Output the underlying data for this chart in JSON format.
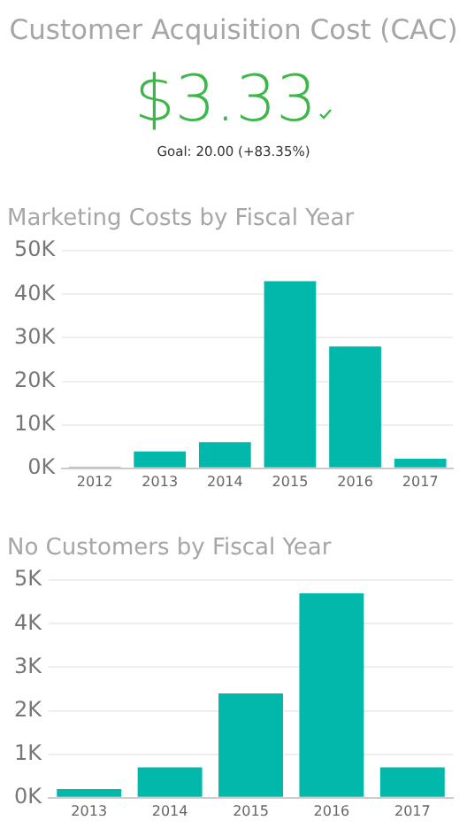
{
  "chart_data": [
    {
      "type": "other",
      "title": "Customer Acquisition Cost (CAC)",
      "annotations": [
        "$3.33",
        "Goal: 20.00 (+83.35%)"
      ]
    },
    {
      "type": "bar",
      "title": "Marketing Costs by Fiscal Year",
      "categories": [
        "2012",
        "2013",
        "2014",
        "2015",
        "2016",
        "2017"
      ],
      "values": [
        300,
        3900,
        6000,
        43000,
        28000,
        2200
      ],
      "color": "#01b8aa",
      "ylim": [
        0,
        50000
      ],
      "yticks": [
        {
          "value": 0,
          "label": "0K"
        },
        {
          "value": 10000,
          "label": "10K"
        },
        {
          "value": 20000,
          "label": "20K"
        },
        {
          "value": 30000,
          "label": "30K"
        },
        {
          "value": 40000,
          "label": "40K"
        },
        {
          "value": 50000,
          "label": "50K"
        }
      ],
      "grid": "y"
    },
    {
      "type": "bar",
      "title": "No Customers by Fiscal Year",
      "categories": [
        "2013",
        "2014",
        "2015",
        "2016",
        "2017"
      ],
      "values": [
        200,
        700,
        2400,
        4700,
        700
      ],
      "color": "#01b8aa",
      "ylim": [
        0,
        5000
      ],
      "yticks": [
        {
          "value": 0,
          "label": "0K"
        },
        {
          "value": 1000,
          "label": "1K"
        },
        {
          "value": 2000,
          "label": "2K"
        },
        {
          "value": 3000,
          "label": "3K"
        },
        {
          "value": 4000,
          "label": "4K"
        },
        {
          "value": 5000,
          "label": "5K"
        }
      ],
      "grid": "y"
    }
  ]
}
